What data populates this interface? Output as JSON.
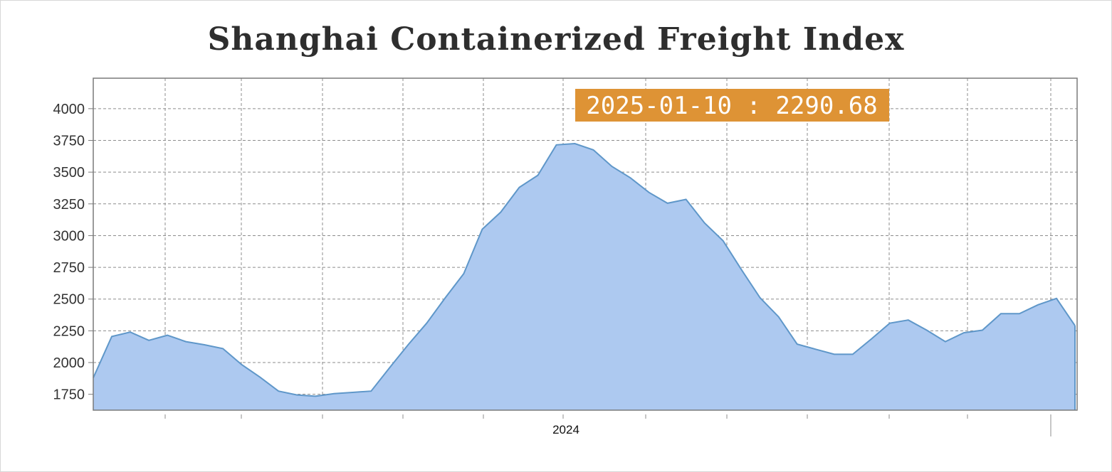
{
  "chart_data": {
    "type": "area",
    "title": "Shanghai Containerized Freight Index",
    "xlabel": "",
    "ylabel": "",
    "ylim": [
      1625,
      4240
    ],
    "yticks": [
      1750,
      2000,
      2250,
      2500,
      2750,
      3000,
      3250,
      3500,
      3750,
      4000
    ],
    "xtick_labels": [
      "2024"
    ],
    "grid": true,
    "colors": {
      "fill": "#adc9f0",
      "line": "#5f97c9",
      "tooltip": "#de9335"
    },
    "tooltip": {
      "text": "2025-01-10 : 2290.68"
    },
    "series": [
      {
        "values": [
          1880,
          2205,
          2240,
          2175,
          2215,
          2165,
          2140,
          2110,
          1985,
          1885,
          1775,
          1745,
          1735,
          1755,
          1765,
          1775,
          1960,
          2140,
          2310,
          2510,
          2700,
          3050,
          3185,
          3380,
          3475,
          3715,
          3725,
          3675,
          3545,
          3455,
          3340,
          3255,
          3285,
          3100,
          2960,
          2730,
          2510,
          2360,
          2145,
          2105,
          2065,
          2065,
          2185,
          2310,
          2335,
          2255,
          2165,
          2235,
          2255,
          2385,
          2385,
          2455,
          2505,
          2290.68
        ]
      }
    ]
  }
}
